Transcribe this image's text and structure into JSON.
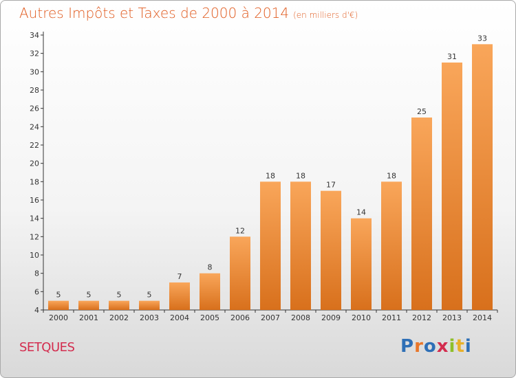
{
  "header": {
    "title": "Autres Impôts et Taxes de 2000 à 2014",
    "unit_note": "(en milliers d'€)"
  },
  "footer": {
    "commune": "SETQUES",
    "logo_text": "Proxiti",
    "logo_colors": [
      "#2e6fb6",
      "#e8762a",
      "#2e6fb6",
      "#d32c4e",
      "#8fbf2a",
      "#e8b02a",
      "#2e6fb6"
    ]
  },
  "colors": {
    "bar_light": "#f9a65a",
    "bar_dark": "#d8701c",
    "axis": "#333333",
    "grid": "#c8c8c8"
  },
  "chart_data": {
    "type": "bar",
    "title": "Autres Impôts et Taxes de 2000 à 2014",
    "subtitle": "(en milliers d'€)",
    "categories": [
      "2000",
      "2001",
      "2002",
      "2003",
      "2004",
      "2005",
      "2006",
      "2007",
      "2008",
      "2009",
      "2010",
      "2011",
      "2012",
      "2013",
      "2014"
    ],
    "values": [
      5,
      5,
      5,
      5,
      7,
      8,
      12,
      18,
      18,
      17,
      14,
      18,
      25,
      31,
      33
    ],
    "data_labels": [
      "5",
      "5",
      "5",
      "5",
      "7",
      "8",
      "12",
      "18",
      "18",
      "17",
      "14",
      "18",
      "25",
      "31",
      "33"
    ],
    "yticks": [
      "4",
      "6",
      "8",
      "10",
      "12",
      "14",
      "16",
      "18",
      "20",
      "22",
      "24",
      "26",
      "28",
      "30",
      "32",
      "34"
    ],
    "ylim": [
      4,
      34
    ],
    "grid": false,
    "legend": "none"
  }
}
